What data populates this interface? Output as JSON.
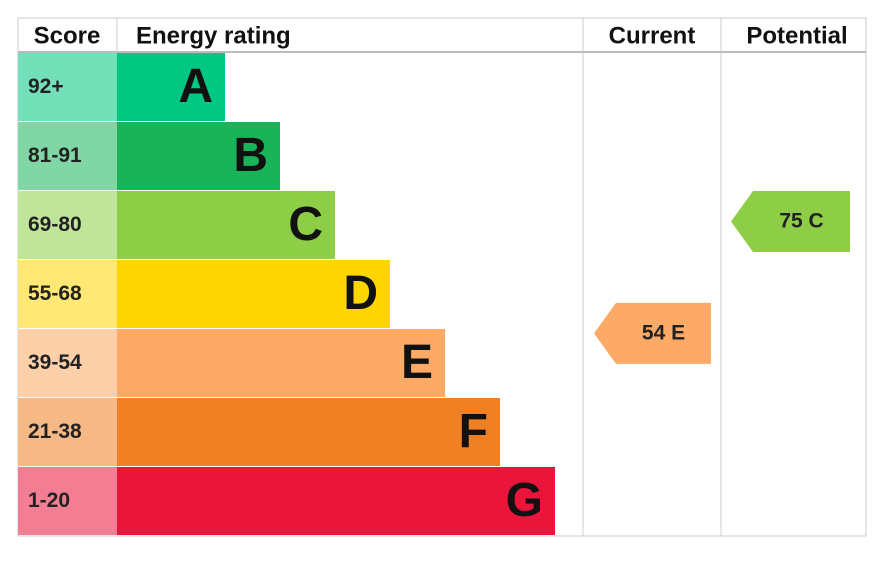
{
  "header": {
    "score": "Score",
    "energy_rating": "Energy rating",
    "current": "Current",
    "potential": "Potential"
  },
  "bands": [
    {
      "score": "92+",
      "letter": "A",
      "color": "#00c781"
    },
    {
      "score": "81-91",
      "letter": "B",
      "color": "#19b459"
    },
    {
      "score": "69-80",
      "letter": "C",
      "color": "#8dce46"
    },
    {
      "score": "55-68",
      "letter": "D",
      "color": "#ffd500"
    },
    {
      "score": "39-54",
      "letter": "E",
      "color": "#fcaa65"
    },
    {
      "score": "21-38",
      "letter": "F",
      "color": "#ef8023"
    },
    {
      "score": "1-20",
      "letter": "G",
      "color": "#e9153b"
    }
  ],
  "current": {
    "score": 54,
    "letter": "E"
  },
  "potential": {
    "score": 75,
    "letter": "C"
  }
}
